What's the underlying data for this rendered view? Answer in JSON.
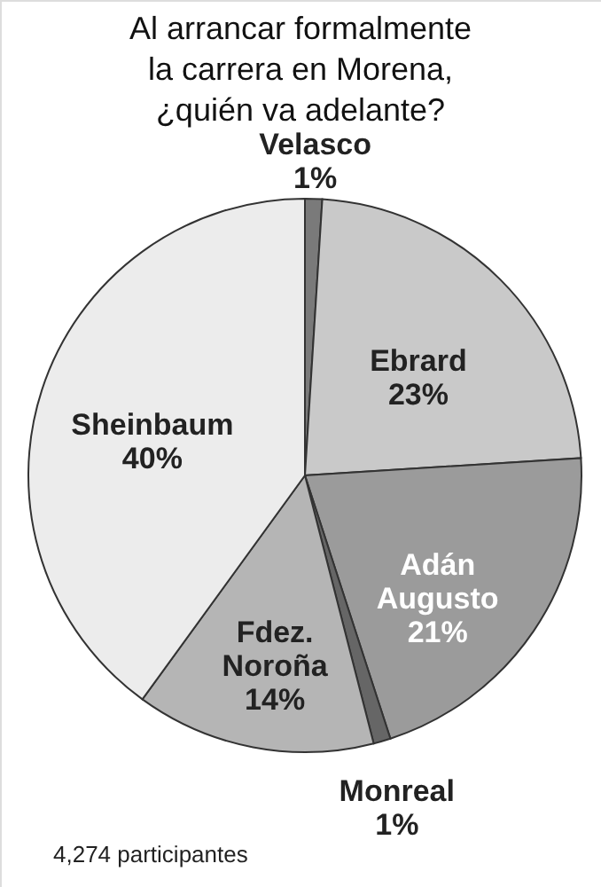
{
  "chart_data": {
    "type": "pie",
    "title": "Al arrancar formalmente la carrera en Morena, ¿quién va adelante?",
    "categories": [
      "Velasco",
      "Ebrard",
      "Adán Augusto",
      "Monreal",
      "Fdez. Noroña",
      "Sheinbaum"
    ],
    "values": [
      1,
      23,
      21,
      1,
      14,
      40
    ],
    "value_labels": [
      "1%",
      "23%",
      "21%",
      "1%",
      "14%",
      "40%"
    ],
    "colors": [
      "#7a7a7a",
      "#c9c9c9",
      "#9b9b9b",
      "#666666",
      "#b5b5b5",
      "#ececec"
    ],
    "annotations": [
      "4,274 participantes"
    ]
  }
}
